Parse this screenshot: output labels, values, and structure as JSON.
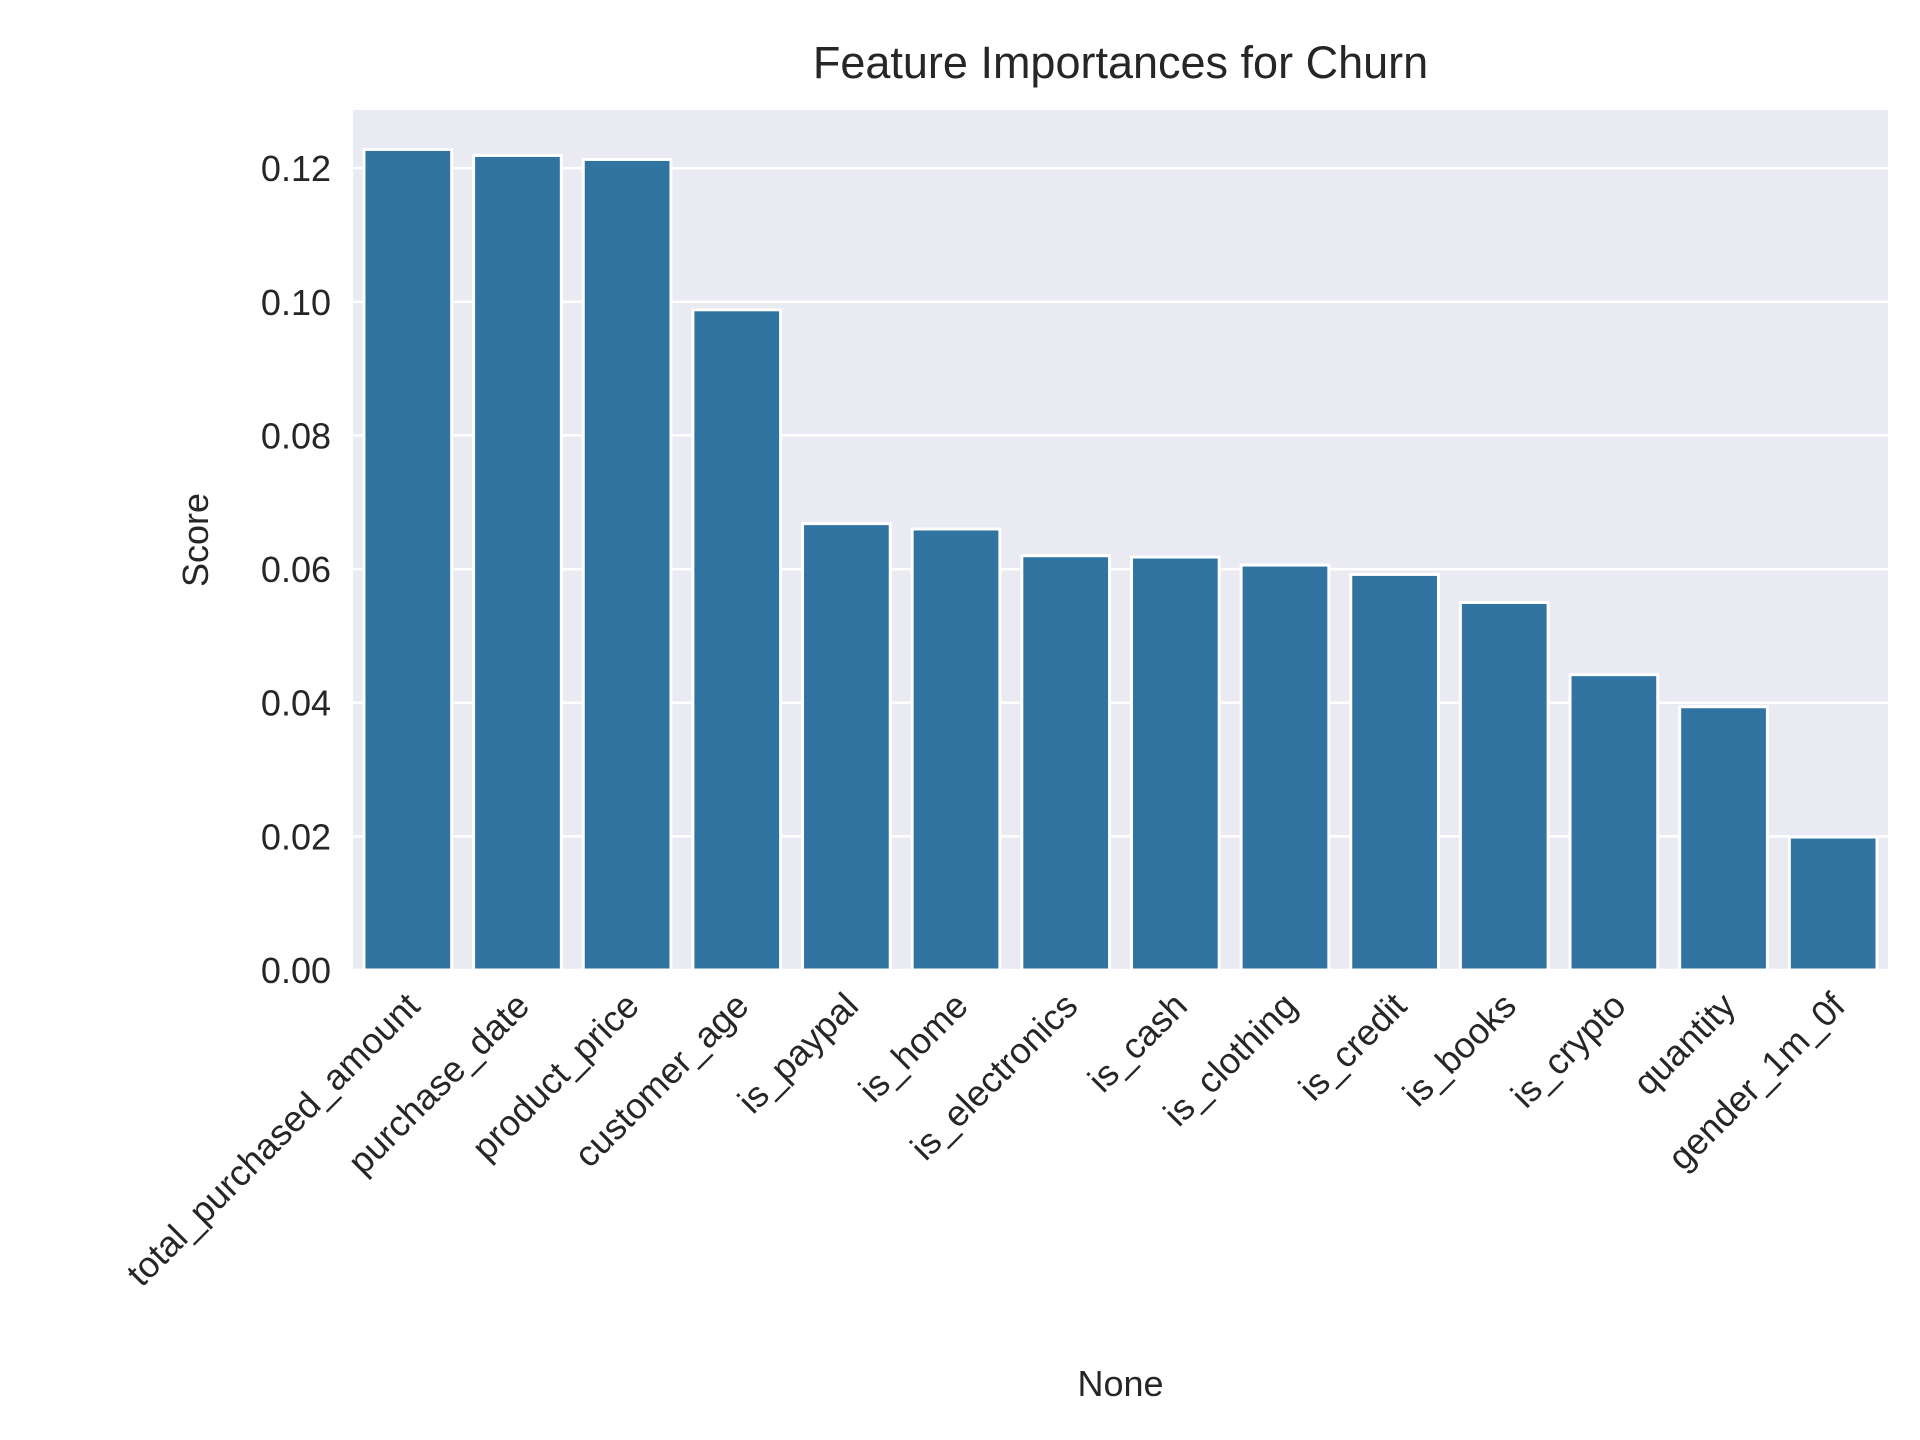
{
  "chart_data": {
    "type": "bar",
    "title": "Feature Importances for Churn",
    "xlabel": "None",
    "ylabel": "Score",
    "categories": [
      "total_purchased_amount",
      "purchase_date",
      "product_price",
      "customer_age",
      "is_paypal",
      "is_home",
      "is_electronics",
      "is_cash",
      "is_clothing",
      "is_credit",
      "is_books",
      "is_crypto",
      "quantity",
      "gender_1m_0f"
    ],
    "values": [
      0.1228,
      0.1219,
      0.1213,
      0.0988,
      0.0668,
      0.066,
      0.062,
      0.0618,
      0.0606,
      0.0592,
      0.055,
      0.0442,
      0.0394,
      0.0199
    ],
    "ylim": [
      0,
      0.1287
    ],
    "yticks": [
      0.0,
      0.02,
      0.04,
      0.06,
      0.08,
      0.1,
      0.12
    ],
    "ytick_labels": [
      "0.00",
      "0.02",
      "0.04",
      "0.06",
      "0.08",
      "0.10",
      "0.12"
    ],
    "grid": true,
    "bar_color": "#3274a1",
    "background_color": "#eaeaf2",
    "grid_color": "#ffffff"
  }
}
